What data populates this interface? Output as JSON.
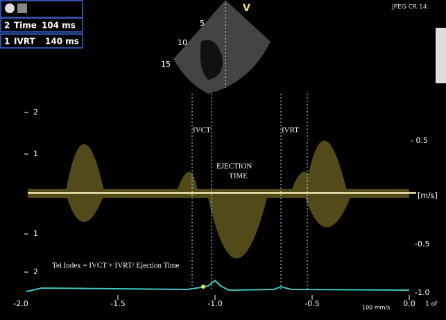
{
  "measurements": [
    {
      "index": "2",
      "label": "Time",
      "value": "104 ms"
    },
    {
      "index": "1",
      "label": "IVRT",
      "value": "140 ms"
    }
  ],
  "header_right": "JPEG CR 14:",
  "sector": {
    "label": "V",
    "depth_ticks": [
      "5",
      "10",
      "15"
    ]
  },
  "doppler": {
    "left_scale": [
      "2",
      "1",
      "1",
      "2"
    ],
    "right_scale": [
      "- 0.5",
      "[m/s]",
      "-0.5",
      "-1.0"
    ],
    "x_axis": [
      "-2.0",
      "-1.5",
      "-1.0",
      "-0.5",
      "0.0"
    ],
    "sweep": "100 mm/s",
    "page": "1 of"
  },
  "annotations": {
    "ivct": "IVCT",
    "ivrt": "IVRT",
    "ejection_time": [
      "EJECTION",
      "TIME"
    ],
    "tei_index": "Tei Index = IVCT + IVRT/ Ejection Time"
  }
}
